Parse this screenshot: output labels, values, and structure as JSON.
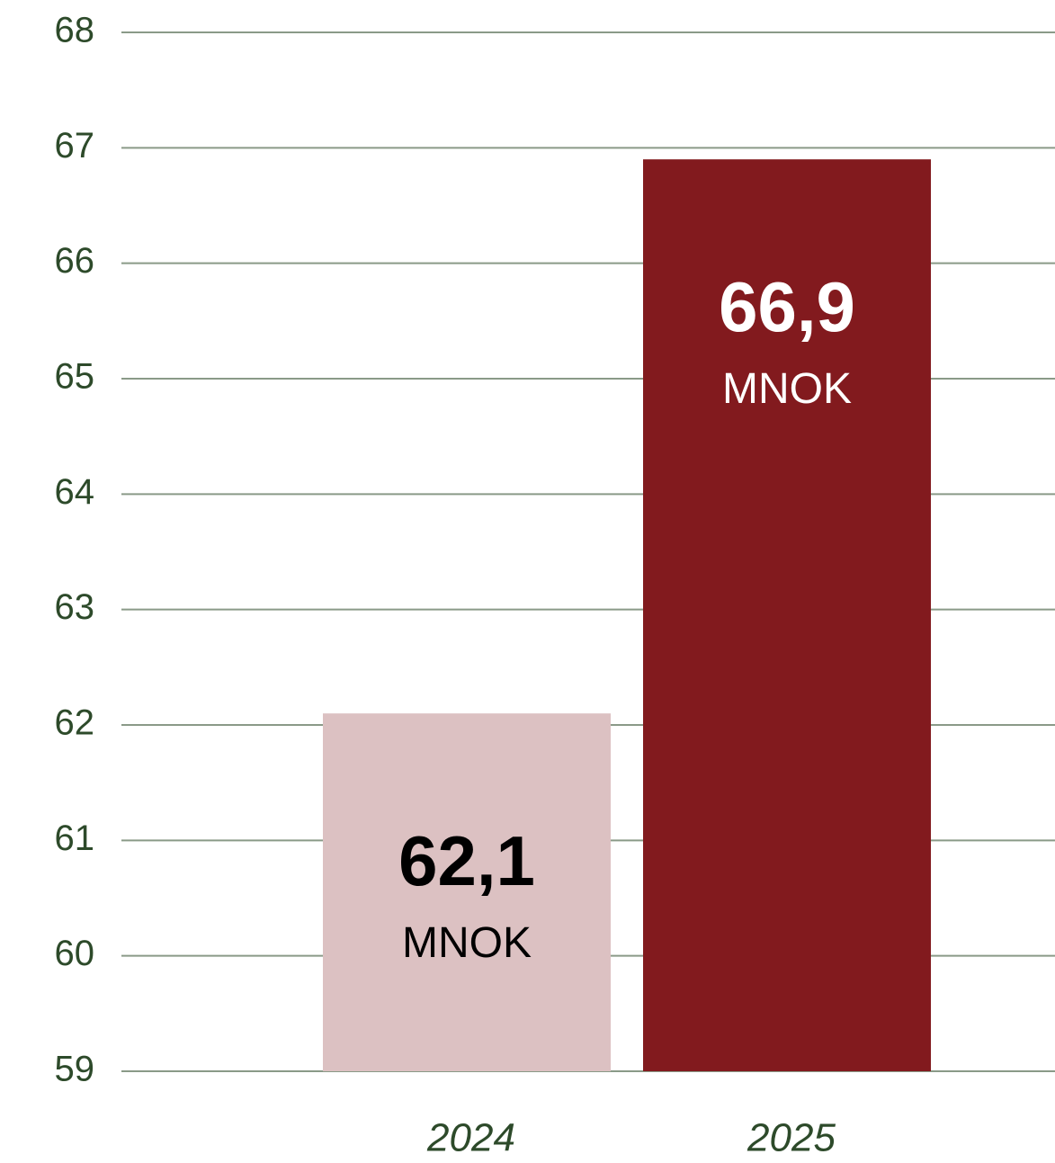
{
  "chart_data": {
    "type": "bar",
    "categories": [
      "2024",
      "2025"
    ],
    "values": [
      62.1,
      66.9
    ],
    "value_labels": [
      "62,1",
      "66,9"
    ],
    "unit": "MNOK",
    "colors": [
      "#dcc1c2",
      "#821a1e"
    ],
    "value_label_colors": [
      "#000000",
      "#ffffff"
    ],
    "ylim": [
      59,
      68
    ],
    "yticks": [
      59,
      60,
      61,
      62,
      63,
      64,
      65,
      66,
      67,
      68
    ],
    "grid": true
  }
}
